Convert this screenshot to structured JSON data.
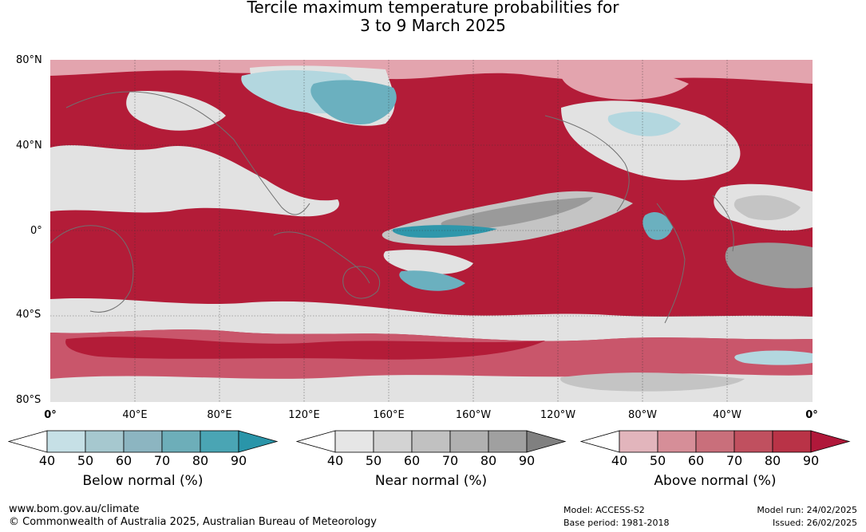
{
  "title": {
    "line1": "Tercile maximum temperature probabilities for",
    "line2": "3 to 9 March 2025"
  },
  "map": {
    "lat_labels": [
      "80°N",
      "40°N",
      "0°",
      "40°S",
      "80°S"
    ],
    "lon_labels": [
      "0°",
      "40°E",
      "80°E",
      "120°E",
      "160°E",
      "160°W",
      "120°W",
      "80°W",
      "40°W",
      "0°"
    ],
    "colors": {
      "above_strong": "#b31c38",
      "above_mid": "#c9566b",
      "above_light": "#e3a4ae",
      "near_light": "#e2e2e2",
      "near_mid": "#c4c4c4",
      "near_dark": "#9a9a9a",
      "below_light": "#b3d7df",
      "below_mid": "#6bb0bf",
      "below_strong": "#2f97ab",
      "coastline": "#707070"
    }
  },
  "legends": [
    {
      "title": "Below normal (%)",
      "ticks": [
        "40",
        "50",
        "60",
        "70",
        "80",
        "90"
      ],
      "colors": [
        "#ffffff",
        "#c6e0e6",
        "#a6c8cf",
        "#8cb5c1",
        "#6daeb9",
        "#4aa5b4",
        "#2a95a9"
      ]
    },
    {
      "title": "Near normal (%)",
      "ticks": [
        "40",
        "50",
        "60",
        "70",
        "80",
        "90"
      ],
      "colors": [
        "#ffffff",
        "#e6e6e6",
        "#d3d3d3",
        "#c1c1c1",
        "#b0b0b0",
        "#a0a0a0",
        "#808080"
      ]
    },
    {
      "title": "Above normal (%)",
      "ticks": [
        "40",
        "50",
        "60",
        "70",
        "80",
        "90"
      ],
      "colors": [
        "#ffffff",
        "#e2b5bc",
        "#d68e98",
        "#c96f7b",
        "#c0505f",
        "#b93347",
        "#b0183a"
      ]
    }
  ],
  "footer": {
    "website": "www.bom.gov.au/climate",
    "copyright": "© Commonwealth of Australia 2025, Australian Bureau of Meteorology",
    "model": "Model: ACCESS-S2",
    "base_period": "Base period: 1981-2018",
    "model_run": "Model run: 24/02/2025",
    "issued": "Issued: 26/02/2025"
  }
}
